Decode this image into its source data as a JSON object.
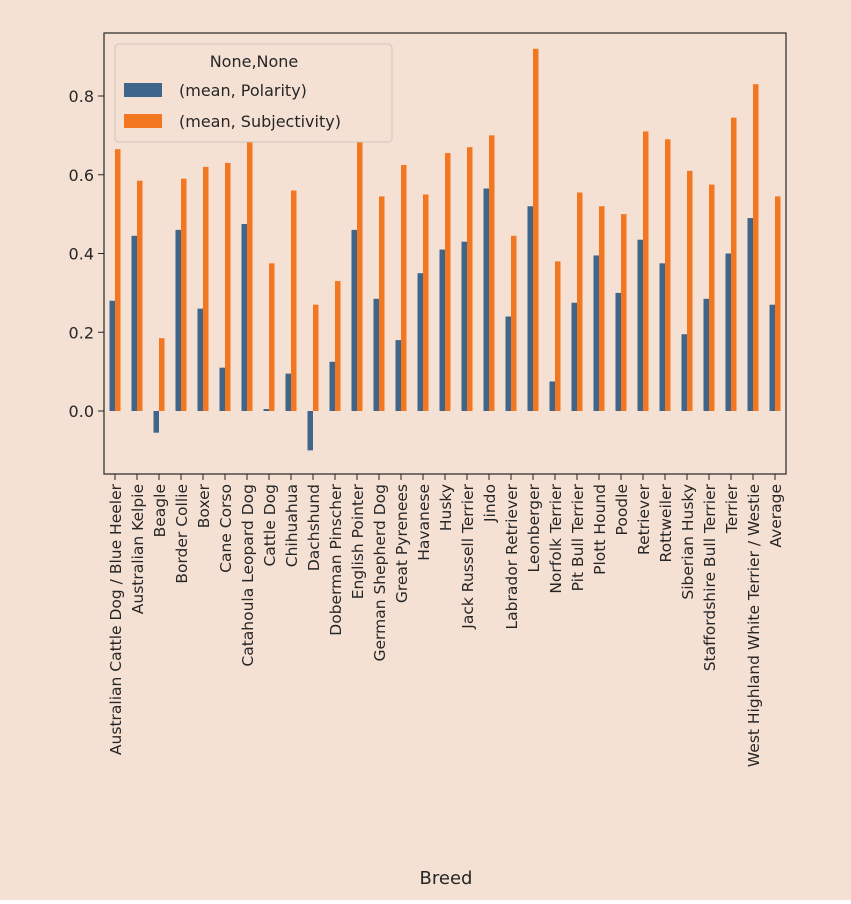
{
  "colors": {
    "background": "#f5e1d4",
    "plot_background": "#f5e1d4",
    "axis": "#262626",
    "polarity": "#3f658b",
    "subjectivity": "#f37620"
  },
  "chart_data": {
    "type": "bar",
    "title": "",
    "xlabel": "Breed",
    "ylabel": "",
    "ylim": [
      -0.16,
      0.96
    ],
    "yticks": [
      0.0,
      0.2,
      0.4,
      0.6,
      0.8
    ],
    "ytick_labels": [
      "0.0",
      "0.2",
      "0.4",
      "0.6",
      "0.8"
    ],
    "grid": false,
    "legend": {
      "title": "None,None",
      "placement": "upper-left"
    },
    "categories": [
      "Australian Cattle Dog / Blue Heeler",
      "Australian Kelpie",
      "Beagle",
      "Border Collie",
      "Boxer",
      "Cane Corso",
      "Catahoula Leopard Dog",
      "Cattle Dog",
      "Chihuahua",
      "Dachshund",
      "Doberman Pinscher",
      "English Pointer",
      "German Shepherd Dog",
      "Great Pyrenees",
      "Havanese",
      "Husky",
      "Jack Russell Terrier",
      "Jindo",
      "Labrador Retriever",
      "Leonberger",
      "Norfolk Terrier",
      "Pit Bull Terrier",
      "Plott Hound",
      "Poodle",
      "Retriever",
      "Rottweiler",
      "Siberian Husky",
      "Staffordshire Bull Terrier",
      "Terrier",
      "West Highland White Terrier / Westie",
      "Average"
    ],
    "series": [
      {
        "name": "(mean, Polarity)",
        "values": [
          0.28,
          0.445,
          -0.055,
          0.46,
          0.26,
          0.11,
          0.475,
          0.005,
          0.095,
          -0.1,
          0.125,
          0.46,
          0.285,
          0.18,
          0.35,
          0.41,
          0.43,
          0.565,
          0.24,
          0.52,
          0.075,
          0.275,
          0.395,
          0.3,
          0.435,
          0.375,
          0.195,
          0.285,
          0.4,
          0.49,
          0.27
        ]
      },
      {
        "name": "(mean, Subjectivity)",
        "values": [
          0.665,
          0.585,
          0.185,
          0.59,
          0.62,
          0.63,
          0.735,
          0.375,
          0.56,
          0.27,
          0.33,
          0.845,
          0.545,
          0.625,
          0.55,
          0.655,
          0.67,
          0.7,
          0.445,
          0.92,
          0.38,
          0.555,
          0.52,
          0.5,
          0.71,
          0.69,
          0.61,
          0.575,
          0.745,
          0.83,
          0.545
        ]
      }
    ]
  }
}
